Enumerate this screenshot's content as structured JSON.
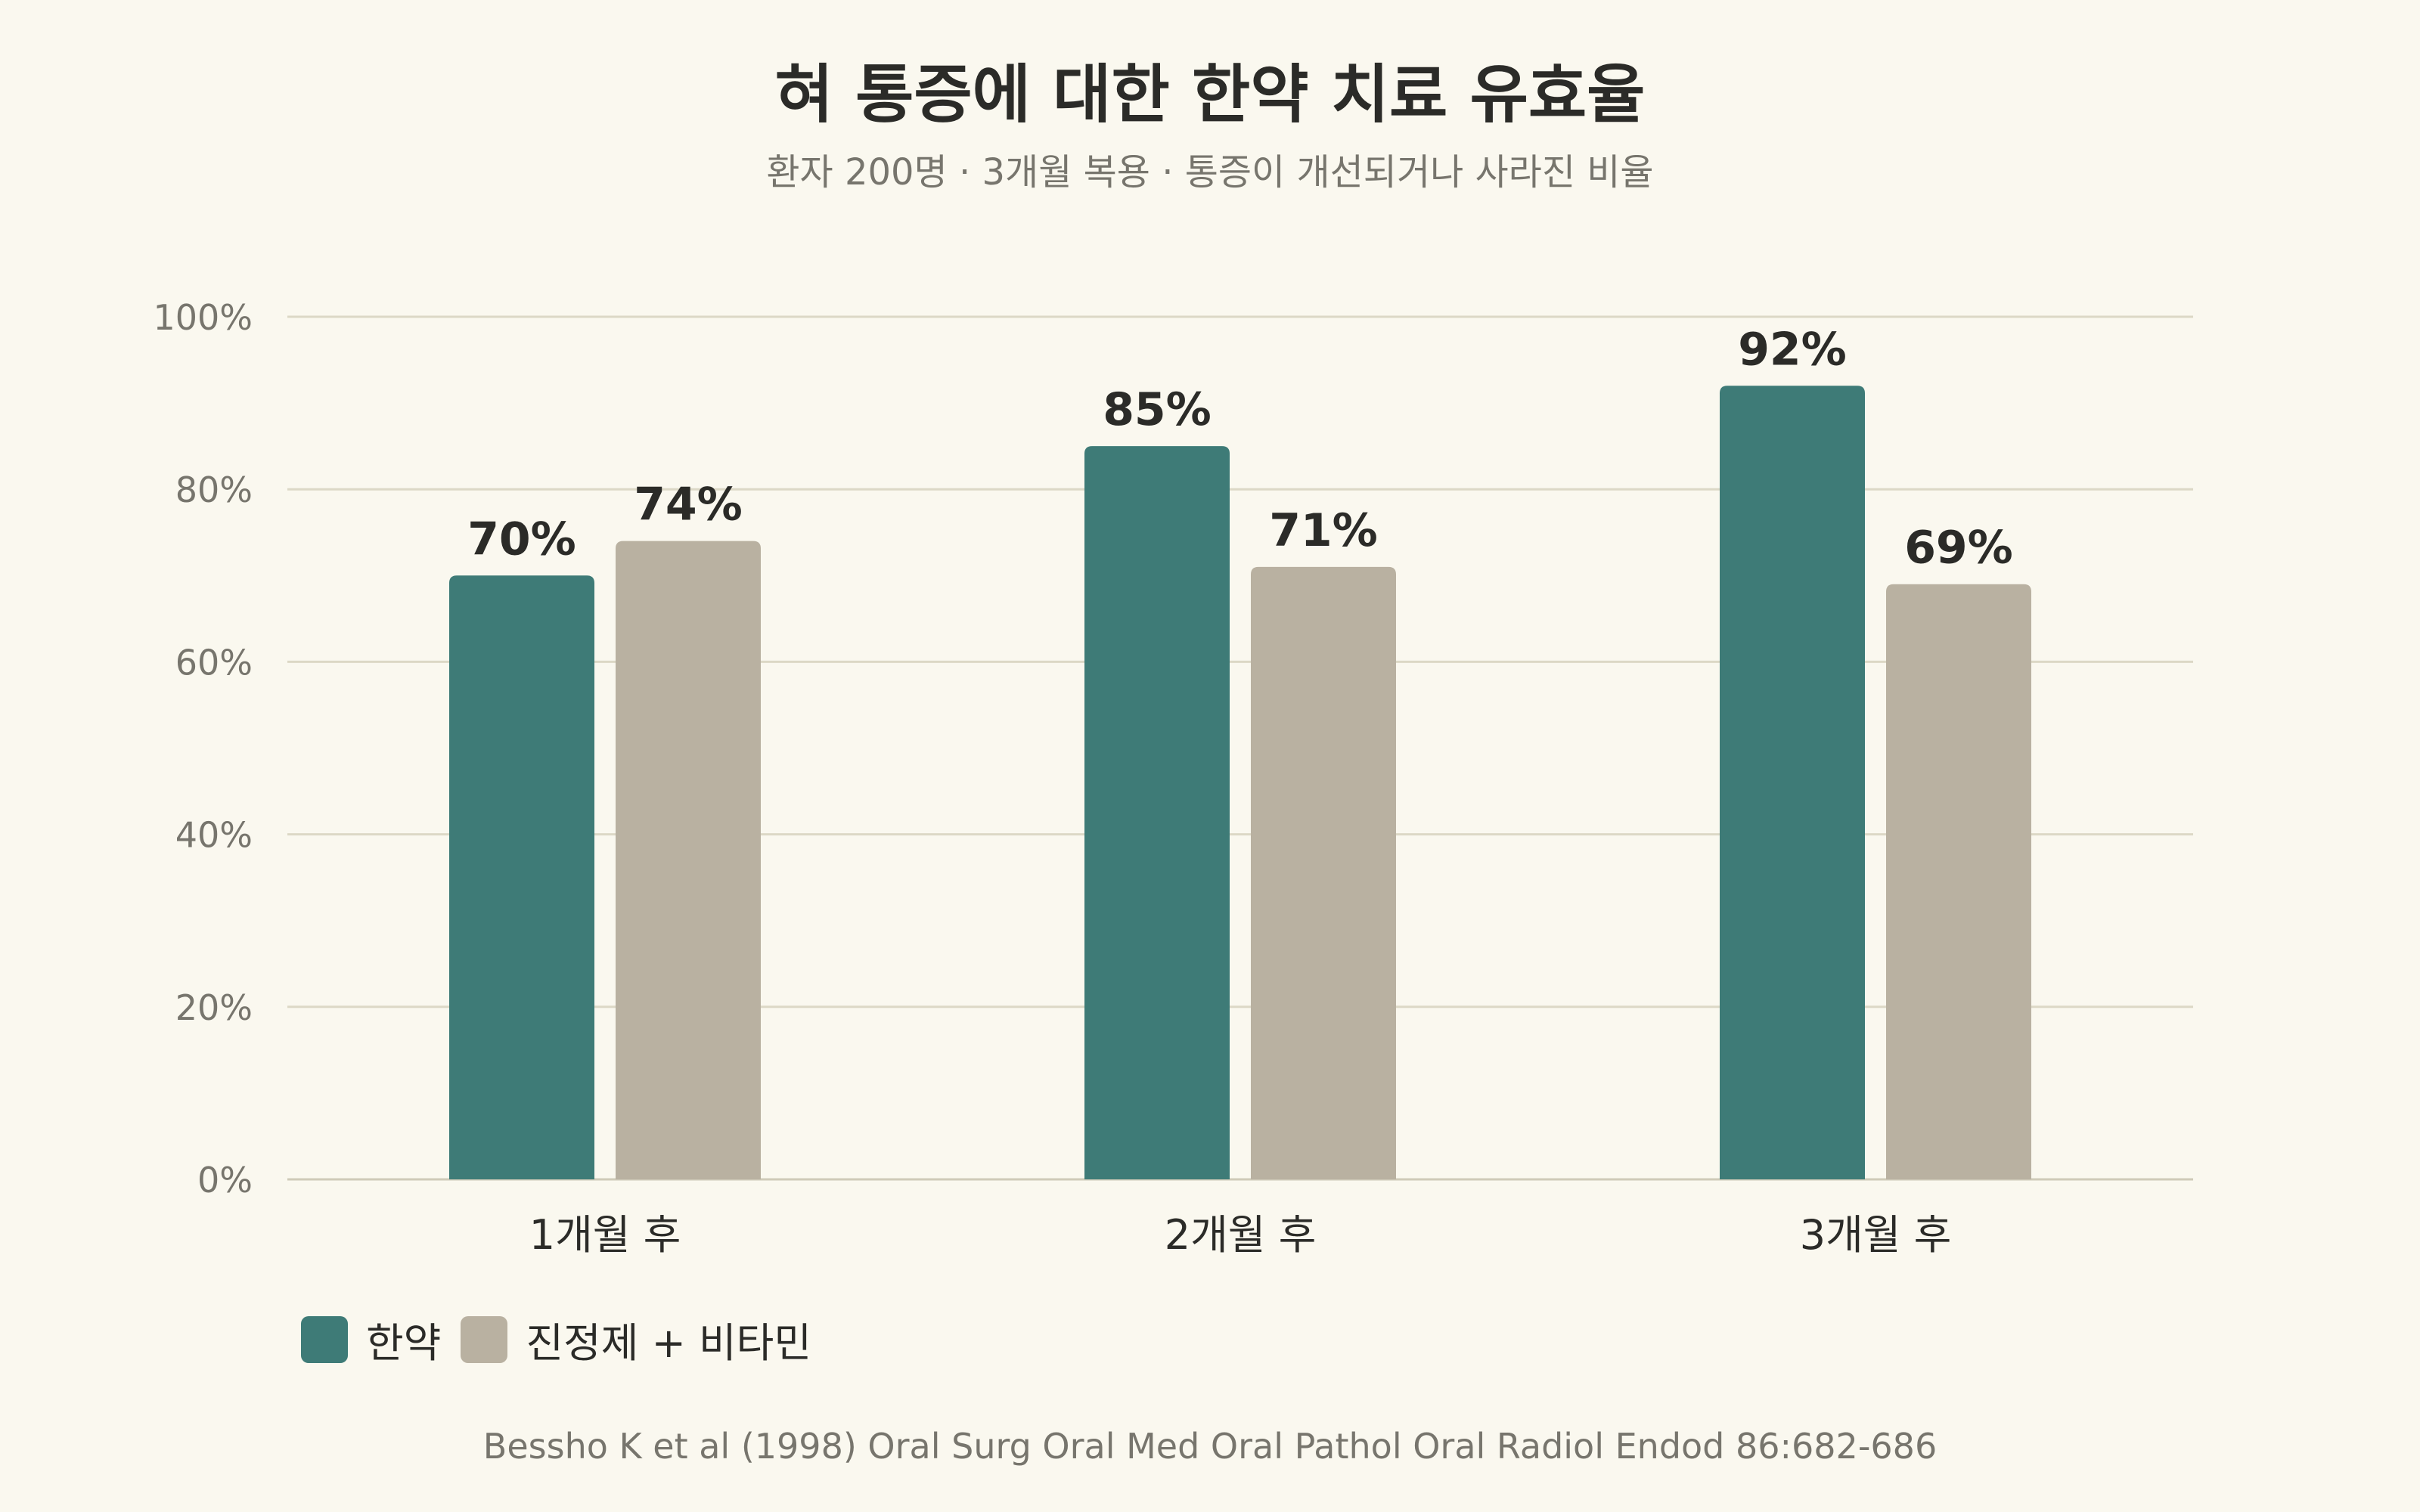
{
  "chart_data": {
    "type": "bar",
    "title": "혀 통증에 대한 한약 치료 유효율",
    "subtitle": "환자 200명 · 3개월 복용 · 통증이 개선되거나 사라진 비율",
    "categories": [
      "1개월 후",
      "2개월 후",
      "3개월 후"
    ],
    "series": [
      {
        "name": "한약",
        "values": [
          70,
          85,
          92
        ],
        "color": "#3e7b77"
      },
      {
        "name": "진정제 + 비타민",
        "values": [
          74,
          71,
          69
        ],
        "color": "#b9b1a1"
      }
    ],
    "value_suffix": "%",
    "ylim": [
      0,
      100
    ],
    "yticks": [
      0,
      20,
      40,
      60,
      80,
      100
    ],
    "ytick_labels": [
      "0%",
      "20%",
      "40%",
      "60%",
      "80%",
      "100%"
    ],
    "xlabel": "",
    "ylabel": "",
    "grid": true,
    "legend_position": "bottom-left",
    "source": "Bessho K et al (1998) Oral Surg Oral Med Oral Pathol Oral Radiol Endod 86:682-686"
  }
}
